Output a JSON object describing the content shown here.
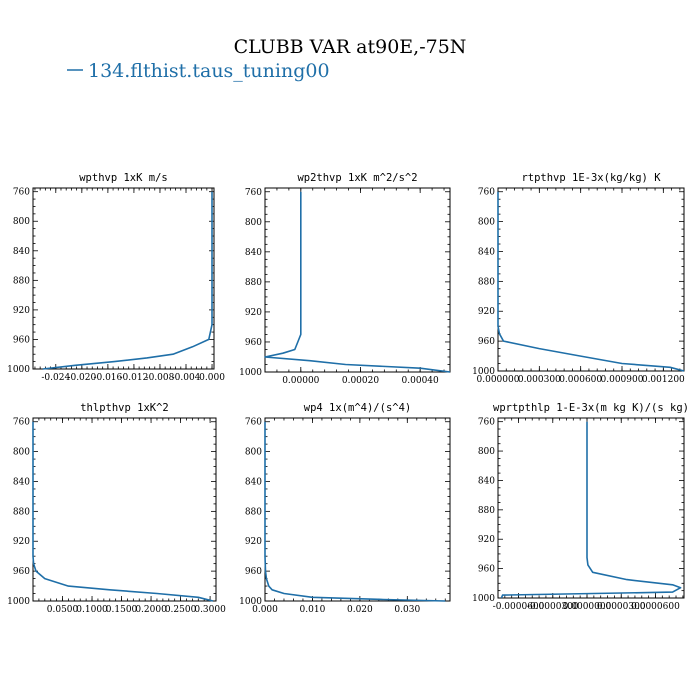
{
  "figure": {
    "title": "CLUBB VAR at90E,-75N",
    "legend_label": "134.flthist.taus_tuning00",
    "series_color": "#1f6fa8"
  },
  "chart_data": [
    {
      "type": "line",
      "title": "wpthvp  1xK m/s",
      "y": [
        1000,
        995,
        990,
        985,
        980,
        970,
        960,
        940,
        920,
        900,
        880,
        860,
        840,
        820,
        800,
        780,
        760
      ],
      "x": [
        -0.026,
        -0.021,
        -0.015,
        -0.01,
        -0.006,
        -0.003,
        -0.0005,
        0.0,
        0.0,
        0.0,
        0.0,
        0.0,
        0.0,
        0.0,
        0.0,
        0.0,
        0.0
      ],
      "xlim": [
        -0.0275,
        0.0003
      ],
      "ylim": [
        1000,
        755
      ],
      "xticks": [
        -0.024,
        -0.02,
        -0.016,
        -0.012,
        -0.008,
        -0.004,
        0.0
      ],
      "xticklabels": [
        "-0.024",
        "-0.020",
        "-0.016",
        "-0.012",
        "-0.008",
        "-0.004",
        "0.000"
      ],
      "yticks": [
        760,
        800,
        840,
        880,
        920,
        960,
        1000
      ],
      "grid": false
    },
    {
      "type": "line",
      "title": "wp2thvp  1xK m^2/s^2",
      "y": [
        1000,
        995,
        990,
        985,
        980,
        975,
        970,
        960,
        950,
        940,
        900,
        850,
        800,
        760
      ],
      "x": [
        0.0005,
        0.0004,
        0.00015,
        3e-05,
        -0.00012,
        -6e-05,
        -2e-05,
        -1e-05,
        0.0,
        0.0,
        0.0,
        0.0,
        0.0,
        0.0
      ],
      "xlim": [
        -0.00012,
        0.0005
      ],
      "ylim": [
        1000,
        755
      ],
      "xticks": [
        0.0,
        0.0002,
        0.0004
      ],
      "xticklabels": [
        "0.00000",
        "0.00020",
        "0.00040"
      ],
      "yticks": [
        760,
        800,
        840,
        880,
        920,
        960,
        1000
      ],
      "grid": false
    },
    {
      "type": "line",
      "title": "rtpthvp  1E-3x(kg/kg) K",
      "y": [
        1000,
        995,
        990,
        980,
        970,
        960,
        950,
        940,
        900,
        850,
        800,
        760
      ],
      "x": [
        0.00135,
        0.00125,
        0.0009,
        0.0006,
        0.0003,
        4e-05,
        1e-05,
        0.0,
        0.0,
        0.0,
        0.0,
        0.0
      ],
      "xlim": [
        0.0,
        0.00135
      ],
      "ylim": [
        1000,
        755
      ],
      "xticks": [
        0.0,
        0.0003,
        0.0006,
        0.0009,
        0.0012
      ],
      "xticklabels": [
        "0.000000",
        "0.000300",
        "0.000600",
        "0.000900",
        "0.001200"
      ],
      "yticks": [
        760,
        800,
        840,
        880,
        920,
        960,
        1000
      ],
      "grid": false
    },
    {
      "type": "line",
      "title": "thlpthvp  1xK^2",
      "y": [
        1000,
        995,
        990,
        985,
        980,
        970,
        960,
        950,
        940,
        900,
        850,
        800,
        760
      ],
      "x": [
        0.305,
        0.28,
        0.21,
        0.13,
        0.06,
        0.02,
        0.005,
        0.001,
        0.0,
        0.0,
        0.0,
        0.0,
        0.0
      ],
      "xlim": [
        0.0,
        0.31
      ],
      "ylim": [
        1000,
        755
      ],
      "xticks": [
        0.05,
        0.1,
        0.15,
        0.2,
        0.25,
        0.3
      ],
      "xticklabels": [
        "0.0500",
        "0.1000",
        "0.1500",
        "0.2000",
        "0.2500",
        "0.3000"
      ],
      "yticks": [
        760,
        800,
        840,
        880,
        920,
        960,
        1000
      ],
      "grid": false
    },
    {
      "type": "line",
      "title": "wp4  1x(m^4)/(s^4)",
      "y": [
        1000,
        998,
        995,
        990,
        985,
        980,
        970,
        960,
        940,
        900,
        850,
        800,
        760
      ],
      "x": [
        0.038,
        0.025,
        0.01,
        0.004,
        0.0015,
        0.0008,
        0.0003,
        0.0001,
        0.0,
        0.0,
        0.0,
        0.0,
        0.0
      ],
      "xlim": [
        0.0,
        0.039
      ],
      "ylim": [
        1000,
        755
      ],
      "xticks": [
        0.0,
        0.01,
        0.02,
        0.03
      ],
      "xticklabels": [
        "0.000",
        "0.010",
        "0.020",
        "0.030"
      ],
      "yticks": [
        760,
        800,
        840,
        880,
        920,
        960,
        1000
      ],
      "grid": false
    },
    {
      "type": "line",
      "title": "wprtpthlp  1-E-3x(m kg K)/(s kg)",
      "y": [
        1000,
        996,
        992,
        986,
        982,
        975,
        965,
        955,
        945,
        930,
        900,
        850,
        800,
        760
      ],
      "x": [
        -7.5e-05,
        -7.4e-05,
        7.5e-05,
        8.2e-05,
        7.5e-05,
        3.5e-05,
        5e-06,
        8e-07,
        0.0,
        0.0,
        0.0,
        0.0,
        0.0,
        0.0
      ],
      "xlim": [
        -7.8e-05,
        8.5e-05
      ],
      "ylim": [
        1000,
        755
      ],
      "xticks": [
        -6e-05,
        -3e-05,
        0.0,
        3e-05,
        6e-05
      ],
      "xticklabels": [
        "-0.0000600",
        "-0.0000300",
        "0.0000000",
        "0.0000300",
        "0.0000600"
      ],
      "yticks": [
        760,
        800,
        840,
        880,
        920,
        960,
        1000
      ],
      "grid": false
    }
  ]
}
